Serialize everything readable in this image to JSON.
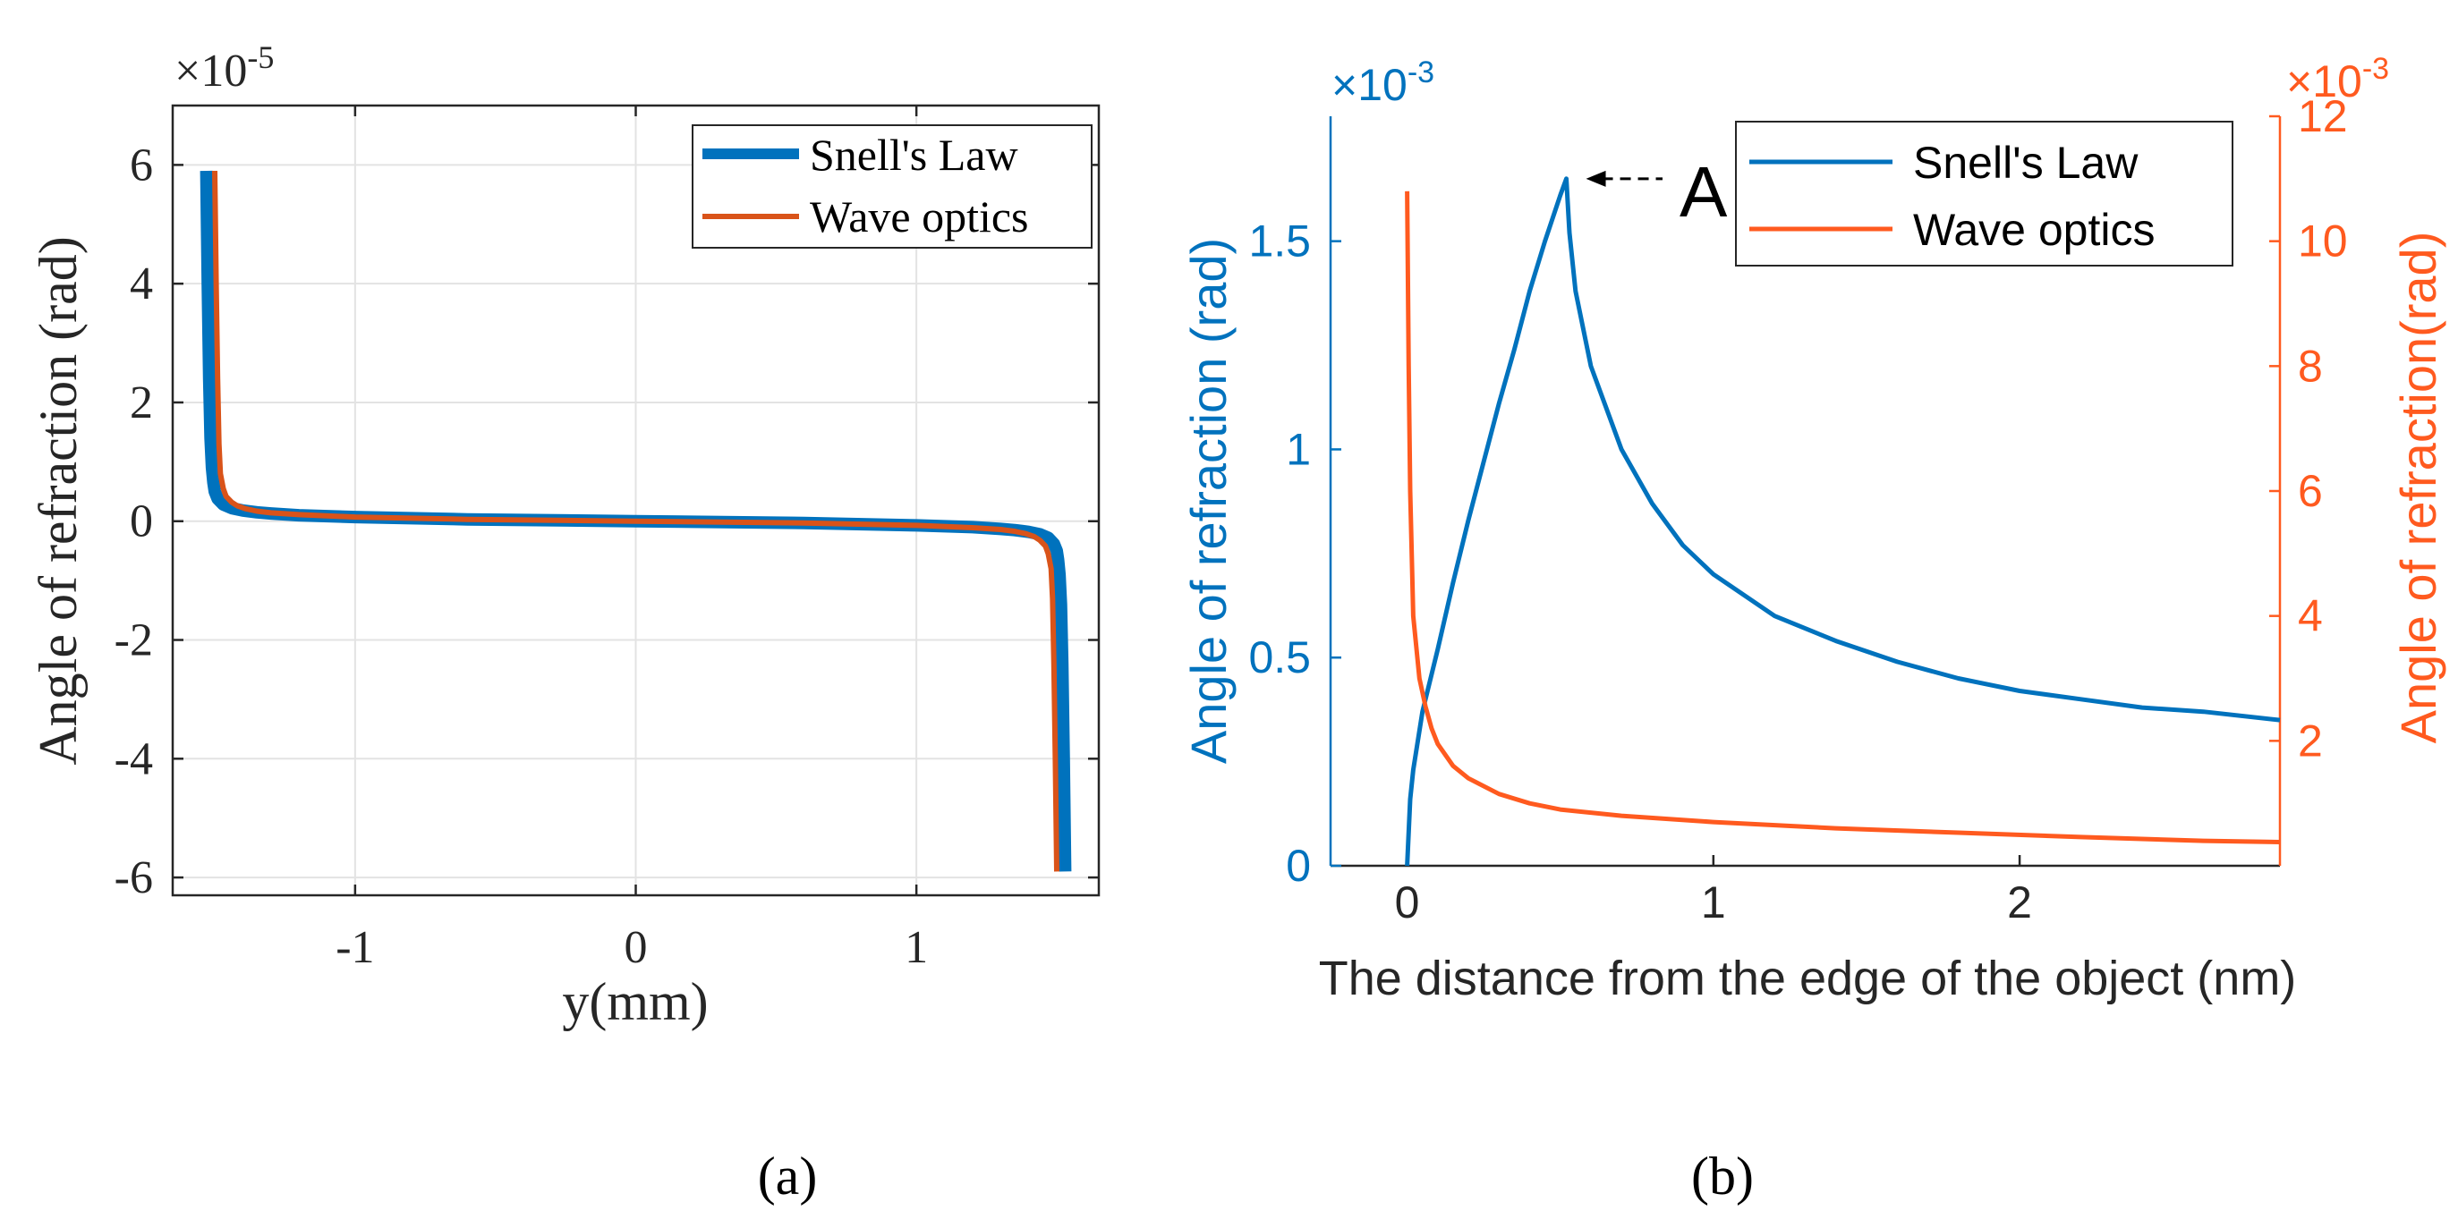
{
  "chart_data": [
    {
      "panel_label": "(a)",
      "type": "line",
      "xlabel": "y(mm)",
      "ylabel": "Angle of refraction (rad)",
      "y_exponent": "×10",
      "y_exponent_power": "-5",
      "xlim": [
        -1.65,
        1.65
      ],
      "ylim": [
        -6.3,
        7
      ],
      "xticks": [
        -1,
        0,
        1
      ],
      "xtick_labels": [
        "-1",
        "0",
        "1"
      ],
      "yticks": [
        -6,
        -4,
        -2,
        0,
        2,
        4,
        6
      ],
      "ytick_labels": [
        "-6",
        "-4",
        "-2",
        "0",
        "2",
        "4",
        "6"
      ],
      "grid": true,
      "legend_position": "top-right",
      "series": [
        {
          "name": "Snell's Law",
          "color": "#0072BD",
          "x": [
            -1.53,
            -1.525,
            -1.52,
            -1.515,
            -1.51,
            -1.505,
            -1.5,
            -1.49,
            -1.47,
            -1.44,
            -1.4,
            -1.35,
            -1.3,
            -1.2,
            -1.0,
            -0.6,
            0.0,
            0.6,
            1.0,
            1.2,
            1.3,
            1.35,
            1.4,
            1.44,
            1.47,
            1.49,
            1.5,
            1.505,
            1.51,
            1.515,
            1.52,
            1.525,
            1.53
          ],
          "values": [
            5.9,
            4.0,
            2.4,
            1.4,
            0.9,
            0.65,
            0.5,
            0.38,
            0.28,
            0.22,
            0.18,
            0.15,
            0.13,
            0.1,
            0.07,
            0.03,
            0.0,
            -0.03,
            -0.07,
            -0.1,
            -0.13,
            -0.15,
            -0.18,
            -0.22,
            -0.28,
            -0.38,
            -0.5,
            -0.65,
            -0.9,
            -1.4,
            -2.4,
            -4.0,
            -5.9
          ]
        },
        {
          "name": "Wave optics",
          "color": "#D95319",
          "x": [
            -1.5,
            -1.495,
            -1.49,
            -1.485,
            -1.48,
            -1.47,
            -1.46,
            -1.44,
            -1.42,
            -1.39,
            -1.35,
            -1.3,
            -1.2,
            -1.0,
            -0.6,
            0.0,
            0.6,
            1.0,
            1.2,
            1.3,
            1.35,
            1.39,
            1.42,
            1.44,
            1.46,
            1.47,
            1.48,
            1.485,
            1.49,
            1.495,
            1.5
          ],
          "values": [
            5.9,
            4.0,
            2.4,
            1.3,
            0.8,
            0.55,
            0.42,
            0.32,
            0.26,
            0.21,
            0.17,
            0.14,
            0.11,
            0.07,
            0.03,
            0.0,
            -0.03,
            -0.07,
            -0.11,
            -0.14,
            -0.17,
            -0.21,
            -0.26,
            -0.32,
            -0.42,
            -0.55,
            -0.8,
            -1.3,
            -2.4,
            -4.0,
            -5.9
          ]
        }
      ]
    },
    {
      "panel_label": "(b)",
      "type": "line",
      "xlabel": "The distance from the edge of the object (nm)",
      "ylabel_left": "Angle of refraction (rad)",
      "ylabel_right": "Angle of refraction(rad)",
      "y_exponent_left": "×10",
      "y_exponent_left_power": "-3",
      "y_exponent_right": "×10",
      "y_exponent_right_power": "-3",
      "left_axis_color": "#0072BD",
      "right_axis_color": "#FF5A1F",
      "xlim": [
        -0.25,
        2.85
      ],
      "ylim_left": [
        0,
        1.8
      ],
      "ylim_right": [
        0,
        12
      ],
      "xticks": [
        0,
        1,
        2
      ],
      "xtick_labels": [
        "0",
        "1",
        "2"
      ],
      "yticks_left": [
        0,
        0.5,
        1,
        1.5
      ],
      "ytick_labels_left": [
        "0",
        "0.5",
        "1",
        "1.5"
      ],
      "yticks_right": [
        2,
        4,
        6,
        8,
        10,
        12
      ],
      "ytick_labels_right": [
        "2",
        "4",
        "6",
        "8",
        "10",
        "12"
      ],
      "grid": false,
      "legend_position": "top-right",
      "annotation": {
        "text": "A",
        "x": 0.52,
        "y": 1.65
      },
      "series": [
        {
          "name": "Snell's Law",
          "axis": "left",
          "color": "#0072BD",
          "x": [
            0,
            0.01,
            0.02,
            0.05,
            0.1,
            0.15,
            0.2,
            0.25,
            0.3,
            0.35,
            0.4,
            0.45,
            0.5,
            0.52,
            0.53,
            0.55,
            0.6,
            0.7,
            0.8,
            0.9,
            1.0,
            1.2,
            1.4,
            1.6,
            1.8,
            2.0,
            2.2,
            2.4,
            2.6,
            2.85
          ],
          "values": [
            0,
            0.16,
            0.23,
            0.37,
            0.52,
            0.68,
            0.83,
            0.97,
            1.11,
            1.24,
            1.38,
            1.5,
            1.61,
            1.65,
            1.52,
            1.38,
            1.2,
            1.0,
            0.87,
            0.77,
            0.7,
            0.6,
            0.54,
            0.49,
            0.45,
            0.42,
            0.4,
            0.38,
            0.37,
            0.35
          ]
        },
        {
          "name": "Wave optics",
          "axis": "right",
          "color": "#FF5A1F",
          "x": [
            0.0,
            0.005,
            0.01,
            0.02,
            0.04,
            0.06,
            0.08,
            0.1,
            0.15,
            0.2,
            0.3,
            0.4,
            0.5,
            0.7,
            1.0,
            1.4,
            1.8,
            2.2,
            2.6,
            2.85
          ],
          "values": [
            10.8,
            8.0,
            6.0,
            4.0,
            3.0,
            2.55,
            2.2,
            1.95,
            1.6,
            1.4,
            1.15,
            1.0,
            0.9,
            0.8,
            0.7,
            0.6,
            0.53,
            0.46,
            0.4,
            0.38
          ]
        }
      ]
    }
  ]
}
